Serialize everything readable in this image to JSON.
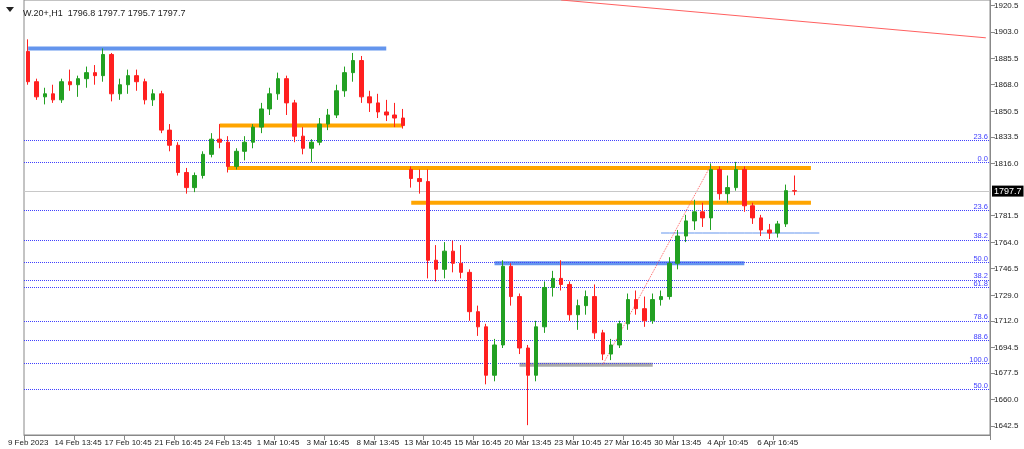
{
  "chart_data": {
    "type": "candlestick",
    "title": "W.20+,H1  1796.8 1797.7 1795.7 1797.7",
    "categories": [
      "9 Feb 2023",
      null,
      null,
      null,
      null,
      null,
      "14 Feb 13:45",
      null,
      null,
      null,
      null,
      null,
      "17 Feb 10:45",
      null,
      null,
      null,
      null,
      null,
      "21 Feb 16:45",
      null,
      null,
      null,
      null,
      null,
      "24 Feb 13:45",
      null,
      null,
      null,
      null,
      null,
      "1 Mar 10:45",
      null,
      null,
      null,
      null,
      null,
      "3 Mar 16:45",
      null,
      null,
      null,
      null,
      null,
      "8 Mar 13:45",
      null,
      null,
      null,
      null,
      null,
      "13 Mar 10:45",
      null,
      null,
      null,
      null,
      null,
      "15 Mar 16:45",
      null,
      null,
      null,
      null,
      null,
      "20 Mar 13:45",
      null,
      null,
      null,
      null,
      null,
      "23 Mar 10:45",
      null,
      null,
      null,
      null,
      null,
      "27 Mar 16:45",
      null,
      null,
      null,
      null,
      null,
      "30 Mar 13:45",
      null,
      null,
      null,
      null,
      null,
      "4 Apr 10:45",
      null,
      null,
      null,
      null,
      null,
      "6 Apr 16:45",
      null,
      null,
      null,
      null,
      null,
      null,
      null,
      null,
      null,
      null,
      null,
      null,
      null,
      null,
      null,
      null,
      null,
      null,
      null,
      null,
      null,
      null,
      null,
      null,
      null
    ],
    "ohlc": [
      [
        1890,
        1898,
        1868,
        1870
      ],
      [
        1870,
        1872,
        1858,
        1860
      ],
      [
        1860,
        1866,
        1855,
        1862
      ],
      [
        1862,
        1868,
        1856,
        1858
      ],
      [
        1858,
        1872,
        1856,
        1870
      ],
      [
        1870,
        1878,
        1864,
        1868
      ],
      [
        1868,
        1874,
        1860,
        1872
      ],
      [
        1872,
        1880,
        1866,
        1876
      ],
      [
        1876,
        1881,
        1868,
        1874
      ],
      [
        1874,
        1892,
        1870,
        1888
      ],
      [
        1888,
        1889,
        1857,
        1862
      ],
      [
        1862,
        1872,
        1858,
        1868
      ],
      [
        1868,
        1878,
        1862,
        1874
      ],
      [
        1874,
        1878,
        1864,
        1870
      ],
      [
        1870,
        1872,
        1855,
        1858
      ],
      [
        1858,
        1865,
        1854,
        1862
      ],
      [
        1862,
        1864,
        1836,
        1838
      ],
      [
        1838,
        1842,
        1824,
        1828
      ],
      [
        1828,
        1830,
        1808,
        1810
      ],
      [
        1810,
        1813,
        1796,
        1800
      ],
      [
        1800,
        1810,
        1797,
        1808
      ],
      [
        1808,
        1824,
        1806,
        1822
      ],
      [
        1822,
        1836,
        1820,
        1832
      ],
      [
        1832,
        1842,
        1826,
        1830
      ],
      [
        1830,
        1834,
        1810,
        1814
      ],
      [
        1814,
        1826,
        1812,
        1824
      ],
      [
        1824,
        1834,
        1818,
        1830
      ],
      [
        1830,
        1842,
        1826,
        1840
      ],
      [
        1840,
        1856,
        1836,
        1852
      ],
      [
        1852,
        1866,
        1848,
        1862
      ],
      [
        1862,
        1876,
        1858,
        1872
      ],
      [
        1872,
        1874,
        1848,
        1856
      ],
      [
        1856,
        1858,
        1830,
        1834
      ],
      [
        1834,
        1840,
        1822,
        1826
      ],
      [
        1826,
        1832,
        1817,
        1830
      ],
      [
        1830,
        1846,
        1828,
        1842
      ],
      [
        1842,
        1852,
        1838,
        1848
      ],
      [
        1848,
        1868,
        1846,
        1864
      ],
      [
        1864,
        1880,
        1860,
        1876
      ],
      [
        1876,
        1889,
        1870,
        1884
      ],
      [
        1884,
        1887,
        1856,
        1860
      ],
      [
        1860,
        1864,
        1850,
        1856
      ],
      [
        1856,
        1862,
        1846,
        1850
      ],
      [
        1850,
        1858,
        1844,
        1848
      ],
      [
        1848,
        1856,
        1840,
        1846
      ],
      [
        1846,
        1852,
        1839,
        1841
      ],
      [
        1812,
        1814,
        1800,
        1806
      ],
      [
        1806,
        1812,
        1796,
        1804
      ],
      [
        1804,
        1812,
        1740,
        1752
      ],
      [
        1752,
        1762,
        1738,
        1746
      ],
      [
        1746,
        1764,
        1740,
        1758
      ],
      [
        1758,
        1765,
        1744,
        1750
      ],
      [
        1750,
        1762,
        1740,
        1744
      ],
      [
        1744,
        1746,
        1712,
        1718
      ],
      [
        1718,
        1722,
        1702,
        1708
      ],
      [
        1708,
        1710,
        1670,
        1676
      ],
      [
        1676,
        1700,
        1672,
        1696
      ],
      [
        1696,
        1752,
        1694,
        1748
      ],
      [
        1748,
        1750,
        1722,
        1728
      ],
      [
        1728,
        1730,
        1690,
        1694
      ],
      [
        1694,
        1696,
        1643,
        1676
      ],
      [
        1676,
        1712,
        1672,
        1708
      ],
      [
        1708,
        1738,
        1704,
        1734
      ],
      [
        1734,
        1745,
        1728,
        1740
      ],
      [
        1740,
        1752,
        1732,
        1736
      ],
      [
        1736,
        1738,
        1712,
        1716
      ],
      [
        1716,
        1726,
        1706,
        1722
      ],
      [
        1722,
        1732,
        1716,
        1728
      ],
      [
        1728,
        1736,
        1700,
        1704
      ],
      [
        1704,
        1706,
        1686,
        1690
      ],
      [
        1690,
        1700,
        1686,
        1696
      ],
      [
        1696,
        1712,
        1694,
        1710
      ],
      [
        1710,
        1730,
        1706,
        1726
      ],
      [
        1726,
        1732,
        1716,
        1720
      ],
      [
        1720,
        1728,
        1708,
        1712
      ],
      [
        1712,
        1730,
        1710,
        1726
      ],
      [
        1726,
        1732,
        1722,
        1728
      ],
      [
        1728,
        1754,
        1726,
        1750
      ],
      [
        1750,
        1772,
        1746,
        1768
      ],
      [
        1768,
        1782,
        1764,
        1778
      ],
      [
        1778,
        1792,
        1772,
        1784
      ],
      [
        1784,
        1790,
        1774,
        1780
      ],
      [
        1780,
        1816,
        1772,
        1812
      ],
      [
        1812,
        1814,
        1792,
        1796
      ],
      [
        1796,
        1808,
        1790,
        1800
      ],
      [
        1800,
        1817,
        1798,
        1812
      ],
      [
        1812,
        1814,
        1784,
        1788
      ],
      [
        1788,
        1790,
        1776,
        1780
      ],
      [
        1780,
        1782,
        1768,
        1772
      ],
      [
        1772,
        1776,
        1766,
        1770
      ],
      [
        1770,
        1778,
        1767,
        1776
      ],
      [
        1776,
        1802,
        1774,
        1798
      ],
      [
        1798,
        1808,
        1795,
        1797.7
      ],
      null,
      null,
      null,
      null,
      null,
      null,
      null,
      null,
      null,
      null,
      null,
      null,
      null,
      null,
      null,
      null,
      null,
      null,
      null,
      null,
      null,
      null,
      null
    ],
    "colors": [
      "#ff2020",
      "#ff2020",
      "#22a022",
      "#ff2020",
      "#22a022",
      "#ff2020",
      "#22a022",
      "#22a022",
      "#ff2020",
      "#22a022",
      "#ff2020",
      "#22a022",
      "#22a022",
      "#ff2020",
      "#ff2020",
      "#22a022",
      "#ff2020",
      "#ff2020",
      "#ff2020",
      "#ff2020",
      "#22a022",
      "#22a022",
      "#22a022",
      "#ff2020",
      "#ff2020",
      "#22a022",
      "#22a022",
      "#22a022",
      "#22a022",
      "#22a022",
      "#22a022",
      "#ff2020",
      "#ff2020",
      "#ff2020",
      "#22a022",
      "#22a022",
      "#22a022",
      "#22a022",
      "#22a022",
      "#22a022",
      "#ff2020",
      "#ff2020",
      "#ff2020",
      "#ff2020",
      "#ff2020",
      "#ff2020",
      "#ff2020",
      "#ff2020",
      "#ff2020",
      "#ff2020",
      "#22a022",
      "#ff2020",
      "#ff2020",
      "#ff2020",
      "#ff2020",
      "#ff2020",
      "#22a022",
      "#22a022",
      "#ff2020",
      "#ff2020",
      "#ff2020",
      "#22a022",
      "#22a022",
      "#22a022",
      "#ff2020",
      "#ff2020",
      "#22a022",
      "#22a022",
      "#ff2020",
      "#ff2020",
      "#22a022",
      "#22a022",
      "#22a022",
      "#ff2020",
      "#ff2020",
      "#22a022",
      "#22a022",
      "#22a022",
      "#22a022",
      "#22a022",
      "#22a022",
      "#ff2020",
      "#22a022",
      "#ff2020",
      "#22a022",
      "#22a022",
      "#ff2020",
      "#ff2020",
      "#ff2020",
      "#ff2020",
      "#22a022",
      "#22a022",
      "#ff2020",
      null,
      null,
      null,
      null,
      null,
      null,
      null,
      null,
      null,
      null,
      null,
      null,
      null,
      null,
      null,
      null,
      null,
      null,
      null,
      null,
      null,
      null,
      null
    ],
    "series": [
      {
        "type": "line",
        "color": "#6495ed",
        "values": [
          1892,
          1892,
          1892,
          1892,
          1892,
          1892,
          1892,
          1892,
          1892,
          1892,
          1892,
          1892,
          1892,
          1892,
          1892,
          1892,
          1892,
          1892,
          1892,
          1892,
          1892,
          1892,
          1892,
          1892,
          1892,
          1892,
          1892,
          1892,
          1892,
          1892,
          1892,
          1892,
          1892,
          1892,
          1892,
          1892,
          1892,
          1892,
          1892,
          1892,
          1892,
          1892,
          1892,
          1892,
          null,
          null,
          null,
          null,
          null,
          null,
          null,
          null,
          null,
          null,
          null,
          null,
          null,
          null,
          null,
          null,
          null,
          null,
          null,
          null,
          null,
          null,
          null,
          null,
          null,
          null,
          null,
          null,
          null,
          null,
          null,
          null,
          null,
          null,
          null,
          null,
          null,
          null,
          null,
          null,
          null,
          null,
          null,
          null,
          null,
          null,
          null,
          null,
          null,
          null,
          null,
          null,
          null,
          null,
          null,
          null,
          null,
          null,
          null,
          null,
          null,
          null,
          null,
          null,
          null,
          null,
          null,
          null,
          null,
          null,
          null,
          null
        ]
      },
      {
        "type": "line",
        "color": "#ffa500",
        "values": [
          null,
          null,
          null,
          null,
          null,
          null,
          null,
          null,
          null,
          null,
          null,
          null,
          null,
          null,
          null,
          null,
          null,
          null,
          null,
          null,
          null,
          null,
          null,
          1841,
          1841,
          1841,
          1841,
          1841,
          1841,
          1841,
          1841,
          1841,
          1841,
          1841,
          1841,
          1841,
          1841,
          1841,
          1841,
          1841,
          1841,
          1841,
          1841,
          1841,
          1841,
          1841,
          null,
          null,
          null,
          null,
          null,
          null,
          null,
          null,
          null,
          null,
          null,
          null,
          null,
          null,
          null,
          null,
          null,
          null,
          null,
          null,
          null,
          null,
          null,
          null,
          null,
          null,
          null,
          null,
          null,
          null,
          null,
          null,
          null,
          null,
          null,
          null,
          null,
          null,
          null,
          null,
          null,
          null,
          null,
          null,
          null,
          null,
          null,
          null,
          null,
          null,
          null,
          null,
          null,
          null,
          null,
          null,
          null,
          null,
          null,
          null,
          null,
          null,
          null,
          null,
          null,
          null,
          null,
          null,
          null,
          null
        ]
      },
      {
        "type": "line",
        "color": "#ffa500",
        "values": [
          null,
          null,
          null,
          null,
          null,
          null,
          null,
          null,
          null,
          null,
          null,
          null,
          null,
          null,
          null,
          null,
          null,
          null,
          null,
          null,
          null,
          null,
          null,
          null,
          1813,
          1813,
          1813,
          1813,
          1813,
          1813,
          1813,
          1813,
          1813,
          1813,
          1813,
          1813,
          1813,
          1813,
          1813,
          1813,
          1813,
          1813,
          1813,
          1813,
          1813,
          1813,
          1813,
          1813,
          1813,
          1813,
          1813,
          1813,
          1813,
          1813,
          1813,
          1813,
          1813,
          1813,
          1813,
          1813,
          1813,
          1813,
          1813,
          1813,
          1813,
          1813,
          1813,
          1813,
          1813,
          1813,
          1813,
          1813,
          1813,
          1813,
          1813,
          1813,
          1813,
          1813,
          1813,
          1813,
          1813,
          1813,
          1813,
          1813,
          1813,
          1813,
          1813,
          1813,
          1813,
          1813,
          1813,
          1813,
          1813,
          1813,
          1813,
          null,
          null,
          null,
          null,
          null,
          null,
          null,
          null,
          null,
          null,
          null,
          null,
          null,
          null,
          null,
          null,
          null,
          null,
          null,
          null,
          null
        ]
      },
      {
        "type": "line",
        "color": "#ffa500",
        "values": [
          null,
          null,
          null,
          null,
          null,
          null,
          null,
          null,
          null,
          null,
          null,
          null,
          null,
          null,
          null,
          null,
          null,
          null,
          null,
          null,
          null,
          null,
          null,
          null,
          null,
          null,
          null,
          null,
          null,
          null,
          null,
          null,
          null,
          null,
          null,
          null,
          null,
          null,
          null,
          null,
          null,
          null,
          null,
          null,
          null,
          null,
          1790,
          1790,
          1790,
          1790,
          1790,
          1790,
          1790,
          1790,
          1790,
          1790,
          1790,
          1790,
          1790,
          1790,
          1790,
          1790,
          1790,
          1790,
          1790,
          1790,
          1790,
          1790,
          1790,
          1790,
          1790,
          1790,
          1790,
          1790,
          1790,
          1790,
          1790,
          1790,
          1790,
          1790,
          1790,
          1790,
          1790,
          1790,
          1790,
          1790,
          1790,
          1790,
          1790,
          1790,
          1790,
          1790,
          1790,
          1790,
          1790,
          null,
          null,
          null,
          null,
          null,
          null,
          null,
          null,
          null,
          null,
          null,
          null,
          null,
          null,
          null,
          null,
          null,
          null,
          null,
          null,
          null
        ]
      },
      {
        "type": "line",
        "color": "#6495ed",
        "values": [
          null,
          null,
          null,
          null,
          null,
          null,
          null,
          null,
          null,
          null,
          null,
          null,
          null,
          null,
          null,
          null,
          null,
          null,
          null,
          null,
          null,
          null,
          null,
          null,
          null,
          null,
          null,
          null,
          null,
          null,
          null,
          null,
          null,
          null,
          null,
          null,
          null,
          null,
          null,
          null,
          null,
          null,
          null,
          null,
          null,
          null,
          null,
          null,
          null,
          null,
          null,
          null,
          null,
          null,
          null,
          null,
          1750,
          1750,
          1750,
          1750,
          1750,
          1750,
          1750,
          1750,
          1750,
          1750,
          1750,
          1750,
          1750,
          1750,
          1750,
          1750,
          1750,
          1750,
          1750,
          1750,
          1750,
          1750,
          1750,
          1750,
          1750,
          1750,
          1750,
          1750,
          1750,
          1750,
          1750,
          null,
          null,
          null,
          null,
          null,
          null,
          null,
          null,
          null,
          null,
          null,
          null,
          null,
          null,
          null,
          null,
          null,
          null,
          null,
          null,
          null,
          null,
          null,
          null,
          null,
          null,
          null,
          null,
          null
        ]
      },
      {
        "type": "line",
        "color": "#a9a9a9",
        "values": [
          null,
          null,
          null,
          null,
          null,
          null,
          null,
          null,
          null,
          null,
          null,
          null,
          null,
          null,
          null,
          null,
          null,
          null,
          null,
          null,
          null,
          null,
          null,
          null,
          null,
          null,
          null,
          null,
          null,
          null,
          null,
          null,
          null,
          null,
          null,
          null,
          null,
          null,
          null,
          null,
          null,
          null,
          null,
          null,
          null,
          null,
          null,
          null,
          null,
          null,
          null,
          null,
          null,
          null,
          null,
          null,
          null,
          null,
          null,
          1683,
          1683,
          1683,
          1683,
          1683,
          1683,
          1683,
          1683,
          1683,
          1683,
          1683,
          1683,
          1683,
          1683,
          1683,
          1683,
          1683,
          null,
          null,
          null,
          null,
          null,
          null,
          null,
          null,
          null,
          null,
          null,
          null,
          null,
          null,
          null,
          null,
          null,
          null,
          null,
          null,
          null,
          null,
          null,
          null,
          null,
          null,
          null,
          null,
          null,
          null,
          null,
          null,
          null,
          null,
          null,
          null,
          null,
          null,
          null,
          null
        ]
      },
      {
        "type": "line",
        "color": "#6495ed",
        "line_style": "solid",
        "values": [
          null,
          null,
          null,
          null,
          null,
          null,
          null,
          null,
          null,
          null,
          null,
          null,
          null,
          null,
          null,
          null,
          null,
          null,
          null,
          null,
          null,
          null,
          null,
          null,
          null,
          null,
          null,
          null,
          null,
          null,
          null,
          null,
          null,
          null,
          null,
          null,
          null,
          null,
          null,
          null,
          null,
          null,
          null,
          null,
          null,
          null,
          null,
          null,
          null,
          null,
          null,
          null,
          null,
          null,
          null,
          null,
          null,
          null,
          null,
          null,
          null,
          null,
          null,
          null,
          null,
          null,
          null,
          null,
          null,
          null,
          null,
          null,
          null,
          null,
          null,
          null,
          1770,
          1770,
          1770,
          1770,
          1770,
          1770,
          1770,
          1770,
          1770,
          1770,
          1770,
          1770,
          1770,
          1770,
          1770,
          1770,
          1770,
          1770,
          1770,
          1770,
          null,
          null,
          null,
          null,
          null,
          null,
          null,
          null,
          null,
          null,
          null,
          null,
          null,
          null,
          null,
          null,
          null,
          null,
          null,
          null
        ]
      },
      {
        "type": "line",
        "color": "#ff6060",
        "line_style": "dotted",
        "values": [
          null,
          null,
          null,
          null,
          null,
          null,
          null,
          null,
          null,
          null,
          null,
          null,
          null,
          null,
          null,
          null,
          null,
          null,
          null,
          null,
          null,
          null,
          null,
          null,
          null,
          null,
          null,
          null,
          null,
          null,
          null,
          null,
          null,
          null,
          null,
          null,
          null,
          null,
          null,
          null,
          null,
          null,
          null,
          null,
          null,
          null,
          null,
          null,
          null,
          null,
          null,
          null,
          null,
          null,
          null,
          null,
          null,
          null,
          null,
          null,
          null,
          null,
          null,
          null,
          null,
          null,
          null,
          null,
          null,
          1683,
          null,
          null,
          null,
          null,
          null,
          null,
          null,
          null,
          null,
          null,
          null,
          null,
          1815,
          null,
          null,
          null,
          null,
          null,
          null,
          null,
          null,
          null,
          null,
          null,
          null,
          null,
          null,
          null,
          null,
          null,
          null,
          null,
          null,
          null,
          null,
          null,
          null,
          null,
          null,
          null,
          null,
          null,
          null,
          null,
          null,
          null
        ]
      },
      {
        "type": "line",
        "color": "#ff6060",
        "line_style": "solid",
        "values": [
          null,
          null,
          null,
          null,
          null,
          null,
          null,
          null,
          null,
          null,
          null,
          null,
          null,
          null,
          null,
          null,
          null,
          null,
          null,
          null,
          null,
          null,
          null,
          null,
          null,
          null,
          null,
          null,
          null,
          null,
          null,
          null,
          null,
          null,
          null,
          null,
          null,
          null,
          null,
          null,
          null,
          null,
          null,
          null,
          null,
          null,
          null,
          null,
          null,
          null,
          null,
          null,
          null,
          null,
          null,
          null,
          null,
          null,
          null,
          null,
          null,
          null,
          null,
          null,
          1924,
          null,
          null,
          null,
          null,
          null,
          null,
          null,
          null,
          null,
          null,
          null,
          null,
          null,
          null,
          null,
          null,
          null,
          null,
          null,
          null,
          null,
          null,
          null,
          null,
          null,
          null,
          null,
          null,
          null,
          null,
          null,
          null,
          null,
          null,
          null,
          null,
          null,
          null,
          null,
          null,
          null,
          null,
          null,
          null,
          null,
          null,
          null,
          null,
          null,
          null,
          1899
        ]
      }
    ],
    "ref_lines": [
      {
        "axis": "y",
        "value": 1797.7,
        "label": "1797.7",
        "color": "#c8c8c8",
        "line_style": "solid"
      },
      {
        "axis": "y",
        "value": 1831,
        "color": "#4040ff",
        "line_style": "dotted"
      },
      {
        "axis": "y",
        "value": 1816.5,
        "color": "#4040ff",
        "line_style": "dotted"
      },
      {
        "axis": "y",
        "value": 1785,
        "color": "#4040ff",
        "line_style": "dotted"
      },
      {
        "axis": "y",
        "value": 1765.5,
        "color": "#4040ff",
        "line_style": "dotted"
      },
      {
        "axis": "y",
        "value": 1750.5,
        "color": "#4040ff",
        "line_style": "dotted"
      },
      {
        "axis": "y",
        "value": 1739,
        "color": "#4040ff",
        "line_style": "dotted"
      },
      {
        "axis": "y",
        "value": 1734,
        "color": "#4040ff",
        "line_style": "dotted"
      },
      {
        "axis": "y",
        "value": 1712,
        "color": "#4040ff",
        "line_style": "dotted"
      },
      {
        "axis": "y",
        "value": 1699,
        "color": "#4040ff",
        "line_style": "dotted"
      },
      {
        "axis": "y",
        "value": 1684,
        "color": "#4040ff",
        "line_style": "dotted"
      },
      {
        "axis": "y",
        "value": 1666.5,
        "color": "#4040ff",
        "line_style": "dotted"
      }
    ],
    "annotations": [
      {
        "text": "23.6",
        "y": 1831
      },
      {
        "text": "0.0",
        "y": 1816.5
      },
      {
        "text": "23.6",
        "y": 1785
      },
      {
        "text": "38.2",
        "y": 1765.5
      },
      {
        "text": "50.0",
        "y": 1750.5
      },
      {
        "text": "38.2",
        "y": 1739
      },
      {
        "text": "61.8",
        "y": 1734
      },
      {
        "text": "78.6",
        "y": 1712
      },
      {
        "text": "88.6",
        "y": 1699
      },
      {
        "text": "100.0",
        "y": 1684
      },
      {
        "text": "50.0",
        "y": 1666.5
      }
    ],
    "ylim": [
      1636.5,
      1924
    ],
    "yticks": [
      1920.5,
      {
        "value": 1903,
        "label": "1903.0"
      },
      1885.5,
      {
        "value": 1868,
        "label": "1868.0"
      },
      1850.5,
      1833.5,
      {
        "value": 1816,
        "label": "1816.0"
      },
      1781.5,
      {
        "value": 1764,
        "label": "1764.0"
      },
      1746.5,
      {
        "value": 1729,
        "label": "1729.0"
      },
      {
        "value": 1712,
        "label": "1712.0"
      },
      1694.5,
      1677.5,
      {
        "value": 1660,
        "label": "1660.0"
      },
      1642.5
    ],
    "grid": false
  }
}
